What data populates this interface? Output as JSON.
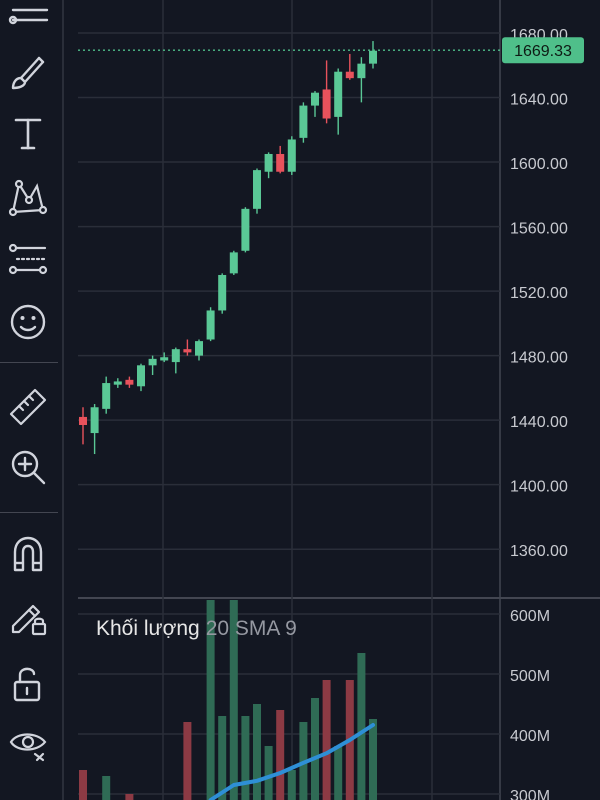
{
  "toolbar": {
    "tools": [
      {
        "name": "crosshair-lines-tool"
      },
      {
        "name": "brush-tool"
      },
      {
        "name": "text-tool"
      },
      {
        "name": "pattern-tool"
      },
      {
        "name": "prediction-tool"
      },
      {
        "name": "emoji-tool"
      },
      {
        "name": "ruler-tool"
      },
      {
        "name": "zoom-in-tool"
      },
      {
        "name": "magnet-tool"
      },
      {
        "name": "lock-drawings-tool"
      },
      {
        "name": "unlock-tool"
      },
      {
        "name": "visibility-tool"
      }
    ]
  },
  "price_axis": {
    "labels": [
      "1680.00",
      "1640.00",
      "1600.00",
      "1560.00",
      "1520.00",
      "1480.00",
      "1440.00",
      "1400.00",
      "1360.00"
    ],
    "current_price": "1669.33",
    "current_price_value": 1669.33,
    "current_price_color": "#4fbf8a"
  },
  "volume_axis": {
    "labels": [
      "600M",
      "500M",
      "400M",
      "300M"
    ]
  },
  "volume_legend": {
    "title": "Khối lượng",
    "params": "20 SMA 9"
  },
  "colors": {
    "up": "#5ac896",
    "down": "#e8525c",
    "volume_up": "#2f6b55",
    "volume_down": "#8c3a44",
    "sma_line": "#2e8fd6",
    "grid": "#2a2e39",
    "background": "#131722"
  },
  "chart_data": {
    "type": "candlestick",
    "price_range": [
      1320,
      1690
    ],
    "volume_range": [
      300,
      620
    ],
    "candles": [
      {
        "o": 1442,
        "h": 1448,
        "l": 1425,
        "c": 1437
      },
      {
        "o": 1432,
        "h": 1450,
        "l": 1419,
        "c": 1448
      },
      {
        "o": 1447,
        "h": 1467,
        "l": 1444,
        "c": 1463
      },
      {
        "o": 1462,
        "h": 1466,
        "l": 1460,
        "c": 1464
      },
      {
        "o": 1465,
        "h": 1467,
        "l": 1460,
        "c": 1462
      },
      {
        "o": 1461,
        "h": 1475,
        "l": 1458,
        "c": 1474
      },
      {
        "o": 1474,
        "h": 1480,
        "l": 1468,
        "c": 1478
      },
      {
        "o": 1477,
        "h": 1482,
        "l": 1476,
        "c": 1479
      },
      {
        "o": 1476,
        "h": 1485,
        "l": 1469,
        "c": 1484
      },
      {
        "o": 1484,
        "h": 1490,
        "l": 1480,
        "c": 1482
      },
      {
        "o": 1480,
        "h": 1490,
        "l": 1477,
        "c": 1489
      },
      {
        "o": 1490,
        "h": 1510,
        "l": 1489,
        "c": 1508
      },
      {
        "o": 1508,
        "h": 1531,
        "l": 1506,
        "c": 1530
      },
      {
        "o": 1531,
        "h": 1545,
        "l": 1530,
        "c": 1544
      },
      {
        "o": 1545,
        "h": 1572,
        "l": 1544,
        "c": 1571
      },
      {
        "o": 1571,
        "h": 1596,
        "l": 1568,
        "c": 1595
      },
      {
        "o": 1594,
        "h": 1606,
        "l": 1590,
        "c": 1605
      },
      {
        "o": 1605,
        "h": 1610,
        "l": 1593,
        "c": 1594
      },
      {
        "o": 1594,
        "h": 1616,
        "l": 1592,
        "c": 1614
      },
      {
        "o": 1615,
        "h": 1637,
        "l": 1612,
        "c": 1635
      },
      {
        "o": 1635,
        "h": 1644,
        "l": 1628,
        "c": 1643
      },
      {
        "o": 1645,
        "h": 1663,
        "l": 1624,
        "c": 1627
      },
      {
        "o": 1628,
        "h": 1658,
        "l": 1617,
        "c": 1656
      },
      {
        "o": 1656,
        "h": 1667,
        "l": 1651,
        "c": 1652
      },
      {
        "o": 1652,
        "h": 1665,
        "l": 1637,
        "c": 1661
      },
      {
        "o": 1661,
        "h": 1675,
        "l": 1658,
        "c": 1669
      }
    ],
    "volumes": [
      {
        "v": 340,
        "up": false
      },
      {
        "v": 270,
        "up": true
      },
      {
        "v": 330,
        "up": true
      },
      {
        "v": 230,
        "up": true
      },
      {
        "v": 300,
        "up": false
      },
      {
        "v": 240,
        "up": true
      },
      {
        "v": 220,
        "up": true
      },
      {
        "v": 250,
        "up": true
      },
      {
        "v": 260,
        "up": true
      },
      {
        "v": 420,
        "up": false
      },
      {
        "v": 280,
        "up": true
      },
      {
        "v": 650,
        "up": true
      },
      {
        "v": 430,
        "up": true
      },
      {
        "v": 650,
        "up": true
      },
      {
        "v": 430,
        "up": true
      },
      {
        "v": 450,
        "up": true
      },
      {
        "v": 380,
        "up": true
      },
      {
        "v": 440,
        "up": false
      },
      {
        "v": 340,
        "up": true
      },
      {
        "v": 420,
        "up": true
      },
      {
        "v": 460,
        "up": true
      },
      {
        "v": 490,
        "up": false
      },
      {
        "v": 380,
        "up": true
      },
      {
        "v": 490,
        "up": false
      },
      {
        "v": 535,
        "up": true
      },
      {
        "v": 425,
        "up": true
      }
    ],
    "volume_sma": [
      {
        "i": 11,
        "v": 290
      },
      {
        "i": 13,
        "v": 315
      },
      {
        "i": 15,
        "v": 322
      },
      {
        "i": 17,
        "v": 335
      },
      {
        "i": 19,
        "v": 352
      },
      {
        "i": 21,
        "v": 368
      },
      {
        "i": 23,
        "v": 390
      },
      {
        "i": 25,
        "v": 415
      }
    ]
  }
}
